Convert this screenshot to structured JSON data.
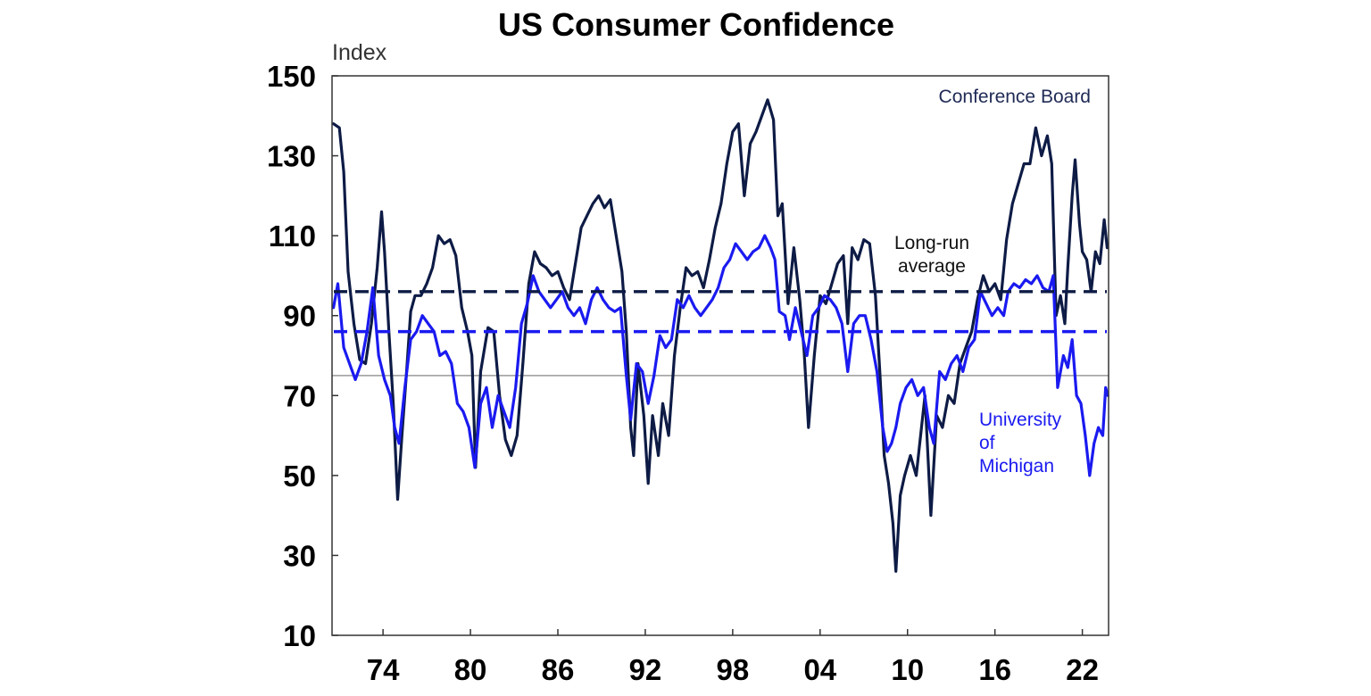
{
  "chart_data": {
    "type": "line",
    "title": "US Consumer Confidence",
    "ylabel": "Index",
    "xlabel": "",
    "ylim": [
      10,
      150
    ],
    "xlim": [
      1970.5,
      2023.8
    ],
    "yticks": [
      10,
      30,
      50,
      70,
      90,
      110,
      130,
      150
    ],
    "xticks": [
      {
        "value": 1974,
        "label": "74"
      },
      {
        "value": 1980,
        "label": "80"
      },
      {
        "value": 1986,
        "label": "86"
      },
      {
        "value": 1992,
        "label": "92"
      },
      {
        "value": 1998,
        "label": "98"
      },
      {
        "value": 2004,
        "label": "04"
      },
      {
        "value": 2010,
        "label": "10"
      },
      {
        "value": 2016,
        "label": "16"
      },
      {
        "value": 2022,
        "label": "22"
      }
    ],
    "reference_line": {
      "value": 75
    },
    "series": [
      {
        "name": "Conference Board",
        "color": "#0d1b45",
        "long_run_average": 96,
        "points": [
          [
            1970.6,
            138
          ],
          [
            1971.0,
            137
          ],
          [
            1971.3,
            126
          ],
          [
            1971.6,
            101
          ],
          [
            1972.0,
            88
          ],
          [
            1972.4,
            79
          ],
          [
            1972.8,
            78
          ],
          [
            1973.2,
            88
          ],
          [
            1973.6,
            102
          ],
          [
            1973.9,
            116
          ],
          [
            1974.1,
            106
          ],
          [
            1974.4,
            86
          ],
          [
            1974.7,
            68
          ],
          [
            1975.0,
            44
          ],
          [
            1975.3,
            60
          ],
          [
            1975.6,
            75
          ],
          [
            1975.9,
            91
          ],
          [
            1976.2,
            95
          ],
          [
            1976.6,
            95
          ],
          [
            1977.0,
            98
          ],
          [
            1977.4,
            102
          ],
          [
            1977.8,
            110
          ],
          [
            1978.2,
            108
          ],
          [
            1978.6,
            109
          ],
          [
            1979.0,
            105
          ],
          [
            1979.4,
            92
          ],
          [
            1979.8,
            86
          ],
          [
            1980.1,
            80
          ],
          [
            1980.35,
            52
          ],
          [
            1980.7,
            76
          ],
          [
            1981.2,
            87
          ],
          [
            1981.6,
            86
          ],
          [
            1982.0,
            70
          ],
          [
            1982.4,
            59
          ],
          [
            1982.8,
            55
          ],
          [
            1983.2,
            60
          ],
          [
            1983.6,
            78
          ],
          [
            1984.0,
            98
          ],
          [
            1984.4,
            106
          ],
          [
            1984.8,
            103
          ],
          [
            1985.2,
            102
          ],
          [
            1985.6,
            100
          ],
          [
            1986.0,
            101
          ],
          [
            1986.4,
            97
          ],
          [
            1986.8,
            94
          ],
          [
            1987.2,
            103
          ],
          [
            1987.6,
            112
          ],
          [
            1988.0,
            115
          ],
          [
            1988.4,
            118
          ],
          [
            1988.8,
            120
          ],
          [
            1989.2,
            117
          ],
          [
            1989.6,
            119
          ],
          [
            1990.0,
            110
          ],
          [
            1990.4,
            101
          ],
          [
            1990.7,
            86
          ],
          [
            1991.0,
            62
          ],
          [
            1991.2,
            55
          ],
          [
            1991.5,
            78
          ],
          [
            1991.9,
            65
          ],
          [
            1992.2,
            48
          ],
          [
            1992.5,
            65
          ],
          [
            1992.9,
            55
          ],
          [
            1993.2,
            68
          ],
          [
            1993.6,
            60
          ],
          [
            1994.0,
            80
          ],
          [
            1994.4,
            92
          ],
          [
            1994.8,
            102
          ],
          [
            1995.2,
            100
          ],
          [
            1995.6,
            101
          ],
          [
            1996.0,
            97
          ],
          [
            1996.4,
            104
          ],
          [
            1996.8,
            112
          ],
          [
            1997.2,
            118
          ],
          [
            1997.6,
            128
          ],
          [
            1998.0,
            136
          ],
          [
            1998.4,
            138
          ],
          [
            1998.8,
            120
          ],
          [
            1999.2,
            133
          ],
          [
            1999.6,
            136
          ],
          [
            2000.0,
            140
          ],
          [
            2000.4,
            144
          ],
          [
            2000.8,
            139
          ],
          [
            2001.1,
            115
          ],
          [
            2001.4,
            118
          ],
          [
            2001.8,
            93
          ],
          [
            2002.2,
            107
          ],
          [
            2002.6,
            94
          ],
          [
            2002.9,
            81
          ],
          [
            2003.2,
            62
          ],
          [
            2003.6,
            80
          ],
          [
            2004.0,
            95
          ],
          [
            2004.4,
            93
          ],
          [
            2004.8,
            98
          ],
          [
            2005.2,
            103
          ],
          [
            2005.6,
            105
          ],
          [
            2005.9,
            88
          ],
          [
            2006.2,
            107
          ],
          [
            2006.6,
            104
          ],
          [
            2007.0,
            109
          ],
          [
            2007.4,
            108
          ],
          [
            2007.8,
            95
          ],
          [
            2008.1,
            76
          ],
          [
            2008.4,
            55
          ],
          [
            2008.7,
            48
          ],
          [
            2009.0,
            38
          ],
          [
            2009.2,
            26
          ],
          [
            2009.5,
            45
          ],
          [
            2009.8,
            50
          ],
          [
            2010.2,
            55
          ],
          [
            2010.6,
            50
          ],
          [
            2010.9,
            60
          ],
          [
            2011.2,
            70
          ],
          [
            2011.6,
            40
          ],
          [
            2012.0,
            65
          ],
          [
            2012.4,
            62
          ],
          [
            2012.8,
            70
          ],
          [
            2013.2,
            68
          ],
          [
            2013.6,
            78
          ],
          [
            2014.0,
            82
          ],
          [
            2014.4,
            86
          ],
          [
            2014.8,
            94
          ],
          [
            2015.2,
            100
          ],
          [
            2015.6,
            96
          ],
          [
            2016.0,
            98
          ],
          [
            2016.4,
            94
          ],
          [
            2016.8,
            109
          ],
          [
            2017.2,
            118
          ],
          [
            2017.6,
            123
          ],
          [
            2018.0,
            128
          ],
          [
            2018.4,
            128
          ],
          [
            2018.8,
            137
          ],
          [
            2019.2,
            130
          ],
          [
            2019.6,
            135
          ],
          [
            2019.9,
            128
          ],
          [
            2020.2,
            90
          ],
          [
            2020.5,
            95
          ],
          [
            2020.8,
            88
          ],
          [
            2021.0,
            102
          ],
          [
            2021.3,
            120
          ],
          [
            2021.5,
            129
          ],
          [
            2021.8,
            113
          ],
          [
            2022.0,
            106
          ],
          [
            2022.3,
            104
          ],
          [
            2022.6,
            96
          ],
          [
            2022.9,
            106
          ],
          [
            2023.2,
            103
          ],
          [
            2023.5,
            114
          ],
          [
            2023.7,
            107
          ]
        ]
      },
      {
        "name": "University of Michigan",
        "color": "#1a1af0",
        "long_run_average": 86,
        "points": [
          [
            1970.6,
            92
          ],
          [
            1970.9,
            98
          ],
          [
            1971.3,
            82
          ],
          [
            1971.7,
            78
          ],
          [
            1972.1,
            74
          ],
          [
            1972.5,
            78
          ],
          [
            1972.9,
            86
          ],
          [
            1973.3,
            97
          ],
          [
            1973.7,
            80
          ],
          [
            1974.1,
            74
          ],
          [
            1974.5,
            70
          ],
          [
            1974.8,
            62
          ],
          [
            1975.1,
            58
          ],
          [
            1975.5,
            72
          ],
          [
            1975.9,
            84
          ],
          [
            1976.3,
            86
          ],
          [
            1976.7,
            90
          ],
          [
            1977.1,
            88
          ],
          [
            1977.5,
            86
          ],
          [
            1977.9,
            80
          ],
          [
            1978.3,
            81
          ],
          [
            1978.7,
            78
          ],
          [
            1979.1,
            68
          ],
          [
            1979.5,
            66
          ],
          [
            1979.9,
            62
          ],
          [
            1980.3,
            52
          ],
          [
            1980.7,
            68
          ],
          [
            1981.1,
            72
          ],
          [
            1981.5,
            62
          ],
          [
            1981.9,
            70
          ],
          [
            1982.3,
            66
          ],
          [
            1982.7,
            62
          ],
          [
            1983.1,
            72
          ],
          [
            1983.5,
            88
          ],
          [
            1983.9,
            93
          ],
          [
            1984.3,
            100
          ],
          [
            1984.7,
            96
          ],
          [
            1985.1,
            94
          ],
          [
            1985.5,
            92
          ],
          [
            1985.9,
            94
          ],
          [
            1986.3,
            96
          ],
          [
            1986.7,
            92
          ],
          [
            1987.1,
            90
          ],
          [
            1987.5,
            92
          ],
          [
            1987.9,
            88
          ],
          [
            1988.3,
            94
          ],
          [
            1988.7,
            97
          ],
          [
            1989.1,
            94
          ],
          [
            1989.5,
            92
          ],
          [
            1989.9,
            91
          ],
          [
            1990.3,
            92
          ],
          [
            1990.7,
            75
          ],
          [
            1991.0,
            64
          ],
          [
            1991.4,
            78
          ],
          [
            1991.8,
            76
          ],
          [
            1992.2,
            68
          ],
          [
            1992.6,
            75
          ],
          [
            1993.0,
            85
          ],
          [
            1993.4,
            82
          ],
          [
            1993.8,
            84
          ],
          [
            1994.2,
            94
          ],
          [
            1994.6,
            92
          ],
          [
            1995.0,
            95
          ],
          [
            1995.4,
            92
          ],
          [
            1995.8,
            90
          ],
          [
            1996.2,
            92
          ],
          [
            1996.6,
            94
          ],
          [
            1997.0,
            97
          ],
          [
            1997.4,
            102
          ],
          [
            1997.8,
            104
          ],
          [
            1998.2,
            108
          ],
          [
            1998.6,
            106
          ],
          [
            1999.0,
            104
          ],
          [
            1999.4,
            106
          ],
          [
            1999.8,
            107
          ],
          [
            2000.2,
            110
          ],
          [
            2000.6,
            107
          ],
          [
            2000.9,
            104
          ],
          [
            2001.2,
            91
          ],
          [
            2001.6,
            90
          ],
          [
            2001.9,
            84
          ],
          [
            2002.3,
            92
          ],
          [
            2002.7,
            86
          ],
          [
            2003.1,
            80
          ],
          [
            2003.5,
            90
          ],
          [
            2003.9,
            92
          ],
          [
            2004.3,
            95
          ],
          [
            2004.7,
            94
          ],
          [
            2005.1,
            92
          ],
          [
            2005.5,
            88
          ],
          [
            2005.9,
            76
          ],
          [
            2006.3,
            88
          ],
          [
            2006.7,
            90
          ],
          [
            2007.1,
            90
          ],
          [
            2007.5,
            84
          ],
          [
            2007.9,
            76
          ],
          [
            2008.3,
            62
          ],
          [
            2008.6,
            56
          ],
          [
            2008.9,
            58
          ],
          [
            2009.2,
            62
          ],
          [
            2009.5,
            68
          ],
          [
            2009.9,
            72
          ],
          [
            2010.3,
            74
          ],
          [
            2010.7,
            70
          ],
          [
            2011.1,
            72
          ],
          [
            2011.5,
            62
          ],
          [
            2011.8,
            58
          ],
          [
            2012.2,
            76
          ],
          [
            2012.6,
            74
          ],
          [
            2013.0,
            78
          ],
          [
            2013.4,
            80
          ],
          [
            2013.8,
            76
          ],
          [
            2014.2,
            82
          ],
          [
            2014.6,
            84
          ],
          [
            2015.0,
            96
          ],
          [
            2015.4,
            93
          ],
          [
            2015.8,
            90
          ],
          [
            2016.2,
            92
          ],
          [
            2016.6,
            90
          ],
          [
            2016.9,
            96
          ],
          [
            2017.3,
            98
          ],
          [
            2017.7,
            97
          ],
          [
            2018.1,
            99
          ],
          [
            2018.5,
            98
          ],
          [
            2018.9,
            100
          ],
          [
            2019.3,
            97
          ],
          [
            2019.7,
            96
          ],
          [
            2020.0,
            100
          ],
          [
            2020.3,
            72
          ],
          [
            2020.7,
            80
          ],
          [
            2021.0,
            77
          ],
          [
            2021.3,
            84
          ],
          [
            2021.6,
            70
          ],
          [
            2021.9,
            68
          ],
          [
            2022.2,
            60
          ],
          [
            2022.5,
            50
          ],
          [
            2022.8,
            58
          ],
          [
            2023.1,
            62
          ],
          [
            2023.4,
            60
          ],
          [
            2023.6,
            72
          ],
          [
            2023.75,
            70
          ]
        ]
      }
    ],
    "annotations": {
      "conference_board": "Conference Board",
      "long_run_line1": "Long-run",
      "long_run_line2": "average",
      "umich_line1": "University",
      "umich_line2": "of",
      "umich_line3": "Michigan"
    }
  }
}
